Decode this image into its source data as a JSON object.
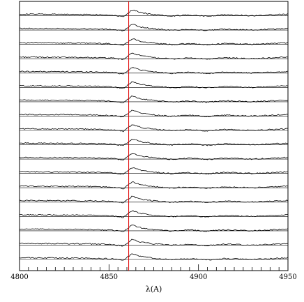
{
  "chart_data": {
    "type": "line",
    "title": "",
    "xlabel": "λ(A)",
    "ylabel": "",
    "xlim": [
      4800,
      4950
    ],
    "x_ticks": [
      "4800",
      "4850",
      "4900",
      "4950"
    ],
    "x_tick_values": [
      4800,
      4850,
      4900,
      4950
    ],
    "reference_line_x": 4861,
    "reference_line_color": "#e00000",
    "line_color": "#000000",
    "grid": false,
    "legend": "none",
    "series_count": 18,
    "series_note_profile": [
      {
        "x": 4800,
        "y": 0.0
      },
      {
        "x": 4820,
        "y": -0.05
      },
      {
        "x": 4840,
        "y": -0.1
      },
      {
        "x": 4852,
        "y": -0.25
      },
      {
        "x": 4858,
        "y": -0.6
      },
      {
        "x": 4863,
        "y": 1.0
      },
      {
        "x": 4868,
        "y": 0.3
      },
      {
        "x": 4875,
        "y": -0.1
      },
      {
        "x": 4885,
        "y": -0.45
      },
      {
        "x": 4895,
        "y": -0.2
      },
      {
        "x": 4905,
        "y": -0.5
      },
      {
        "x": 4915,
        "y": -0.15
      },
      {
        "x": 4930,
        "y": -0.4
      },
      {
        "x": 4950,
        "y": 0.0
      }
    ]
  }
}
